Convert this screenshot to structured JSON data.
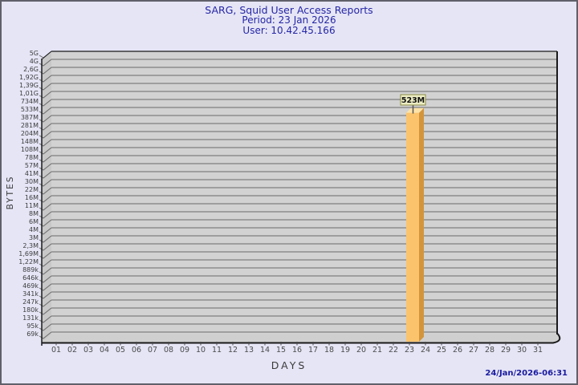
{
  "header": {
    "title": "SARG, Squid User Access Reports",
    "period": "Period: 23 Jan 2026",
    "user": "User: 10.42.45.166"
  },
  "footer": {
    "timestamp": "24/Jan/2026-06:31"
  },
  "colors": {
    "page_bg": "#e5e5f6",
    "page_border": "#60606a",
    "title_text": "#2626a6",
    "timestamp_text": "#1a1aa0",
    "back_wall": "#d2d2d2",
    "side_wall": "#c8c8c8",
    "floor": "#cfcfcf",
    "gridline": "#6a6a6a",
    "outline": "#1a1a1a",
    "y_tick_text": "#3c3c3c",
    "x_tick_text": "#4b4b4b",
    "bar_front": "#fbc46c",
    "bar_side": "#d3953c",
    "bar_top": "#fde3a7",
    "badge_bg": "#ececc2",
    "badge_border": "#8b8b46",
    "badge_text": "#111111",
    "leader_line": "#555555"
  },
  "chart_data": {
    "type": "bar",
    "title": "SARG, Squid User Access Reports",
    "subtitle_period": "Period: 23 Jan 2026",
    "subtitle_user": "User: 10.42.45.166",
    "xlabel": "DAYS",
    "ylabel": "BYTES",
    "legend": "none",
    "grid": "horizontal",
    "style": "3d-bars",
    "categories": [
      "01",
      "02",
      "03",
      "04",
      "05",
      "06",
      "07",
      "08",
      "09",
      "10",
      "11",
      "12",
      "13",
      "14",
      "15",
      "16",
      "17",
      "18",
      "19",
      "20",
      "21",
      "22",
      "23",
      "24",
      "25",
      "26",
      "27",
      "28",
      "29",
      "30",
      "31"
    ],
    "values": [
      0,
      0,
      0,
      0,
      0,
      0,
      0,
      0,
      0,
      0,
      0,
      0,
      0,
      0,
      0,
      0,
      0,
      0,
      0,
      0,
      0,
      0,
      523000000,
      0,
      0,
      0,
      0,
      0,
      0,
      0,
      0
    ],
    "bars": [
      {
        "day": "23",
        "value": 523000000,
        "label": "523M"
      }
    ],
    "y_ticks": [
      "5G",
      "4G",
      "2,6G",
      "1,92G",
      "1,39G",
      "1,01G",
      "734M",
      "533M",
      "387M",
      "281M",
      "204M",
      "148M",
      "108M",
      "78M",
      "57M",
      "41M",
      "30M",
      "22M",
      "16M",
      "11M",
      "8M",
      "6M",
      "4M",
      "3M",
      "2,3M",
      "1,69M",
      "1,22M",
      "889k",
      "646k",
      "469k",
      "341k",
      "247k",
      "180k",
      "131k",
      "95k",
      "69k"
    ],
    "ylim": [
      "69k",
      "5G"
    ]
  }
}
